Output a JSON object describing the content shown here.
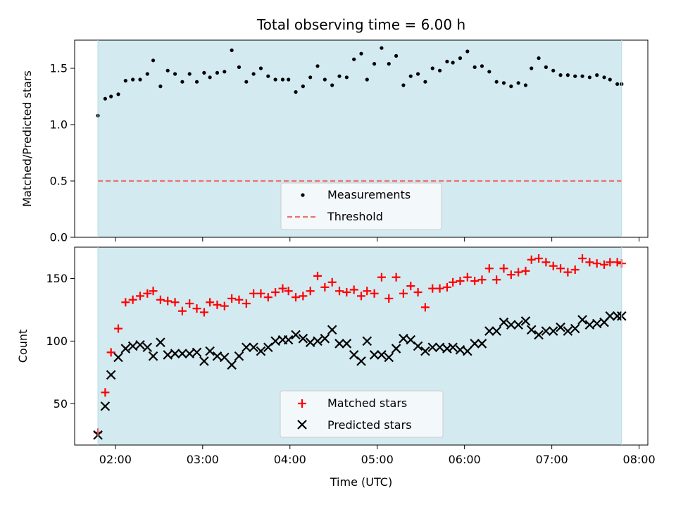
{
  "figure": {
    "title": "Total observing time = 6.00 h"
  },
  "chart_data": [
    {
      "type": "scatter",
      "ylabel": "Matched/Predicted stars",
      "ylim": [
        0,
        1.75
      ],
      "yticks": [
        0.0,
        0.5,
        1.0,
        1.5
      ],
      "ytick_labels": [
        "0.0",
        "0.5",
        "1.0",
        "1.5"
      ],
      "x_range": [
        "01:32",
        "08:06"
      ],
      "shaded_interval": [
        "01:48",
        "07:48"
      ],
      "shade_color": "#d3eaf0",
      "legend_position": "lower-center",
      "series": [
        {
          "name": "Measurements",
          "marker": "dot",
          "color": "#000000",
          "x": [
            "01:48",
            "01:53",
            "01:57",
            "02:02",
            "02:07",
            "02:12",
            "02:17",
            "02:22",
            "02:26",
            "02:31",
            "02:36",
            "02:41",
            "02:46",
            "02:51",
            "02:56",
            "03:01",
            "03:05",
            "03:10",
            "03:15",
            "03:20",
            "03:25",
            "03:30",
            "03:35",
            "03:40",
            "03:45",
            "03:50",
            "03:55",
            "03:59",
            "04:04",
            "04:09",
            "04:14",
            "04:19",
            "04:24",
            "04:29",
            "04:34",
            "04:39",
            "04:44",
            "04:49",
            "04:53",
            "04:58",
            "05:03",
            "05:08",
            "05:13",
            "05:18",
            "05:23",
            "05:28",
            "05:33",
            "05:38",
            "05:43",
            "05:48",
            "05:52",
            "05:57",
            "06:02",
            "06:07",
            "06:12",
            "06:17",
            "06:22",
            "06:27",
            "06:32",
            "06:37",
            "06:42",
            "06:46",
            "06:51",
            "06:56",
            "07:01",
            "07:06",
            "07:11",
            "07:16",
            "07:21",
            "07:26",
            "07:31",
            "07:36",
            "07:40",
            "07:45",
            "07:48"
          ],
          "y": [
            1.08,
            1.23,
            1.25,
            1.27,
            1.39,
            1.4,
            1.4,
            1.45,
            1.57,
            1.34,
            1.48,
            1.45,
            1.38,
            1.45,
            1.38,
            1.46,
            1.42,
            1.46,
            1.47,
            1.66,
            1.51,
            1.38,
            1.45,
            1.5,
            1.43,
            1.4,
            1.4,
            1.4,
            1.29,
            1.34,
            1.42,
            1.52,
            1.4,
            1.35,
            1.43,
            1.42,
            1.58,
            1.63,
            1.4,
            1.54,
            1.68,
            1.54,
            1.61,
            1.35,
            1.43,
            1.45,
            1.38,
            1.5,
            1.48,
            1.56,
            1.55,
            1.59,
            1.65,
            1.51,
            1.52,
            1.47,
            1.38,
            1.37,
            1.34,
            1.37,
            1.35,
            1.5,
            1.59,
            1.51,
            1.48,
            1.44,
            1.44,
            1.43,
            1.43,
            1.42,
            1.44,
            1.42,
            1.4,
            1.36,
            1.36
          ]
        },
        {
          "name": "Threshold",
          "marker": "dashed-line",
          "color": "#f07070",
          "x": [
            "01:48",
            "07:48"
          ],
          "y": [
            0.5,
            0.5
          ]
        }
      ]
    },
    {
      "type": "scatter",
      "xlabel": "Time (UTC)",
      "ylabel": "Count",
      "ylim": [
        17,
        175
      ],
      "yticks": [
        50,
        100,
        150
      ],
      "ytick_labels": [
        "50",
        "100",
        "150"
      ],
      "x_range": [
        "01:32",
        "08:06"
      ],
      "xticks": [
        "02:00",
        "03:00",
        "04:00",
        "05:00",
        "06:00",
        "07:00",
        "08:00"
      ],
      "shaded_interval": [
        "01:48",
        "07:48"
      ],
      "shade_color": "#d3eaf0",
      "legend_position": "lower-center",
      "series": [
        {
          "name": "Matched stars",
          "marker": "plus",
          "color": "#ff0000",
          "x": [
            "01:48",
            "01:53",
            "01:57",
            "02:02",
            "02:07",
            "02:12",
            "02:17",
            "02:22",
            "02:26",
            "02:31",
            "02:36",
            "02:41",
            "02:46",
            "02:51",
            "02:56",
            "03:01",
            "03:05",
            "03:10",
            "03:15",
            "03:20",
            "03:25",
            "03:30",
            "03:35",
            "03:40",
            "03:45",
            "03:50",
            "03:55",
            "03:59",
            "04:04",
            "04:09",
            "04:14",
            "04:19",
            "04:24",
            "04:29",
            "04:34",
            "04:39",
            "04:44",
            "04:49",
            "04:53",
            "04:58",
            "05:03",
            "05:08",
            "05:13",
            "05:18",
            "05:23",
            "05:28",
            "05:33",
            "05:38",
            "05:43",
            "05:48",
            "05:52",
            "05:57",
            "06:02",
            "06:07",
            "06:12",
            "06:17",
            "06:22",
            "06:27",
            "06:32",
            "06:37",
            "06:42",
            "06:46",
            "06:51",
            "06:56",
            "07:01",
            "07:06",
            "07:11",
            "07:16",
            "07:21",
            "07:26",
            "07:31",
            "07:36",
            "07:40",
            "07:45",
            "07:48"
          ],
          "y": [
            27,
            59,
            91,
            110,
            131,
            133,
            136,
            138,
            140,
            133,
            132,
            131,
            124,
            130,
            126,
            123,
            131,
            129,
            128,
            134,
            133,
            130,
            138,
            138,
            135,
            139,
            142,
            140,
            135,
            136,
            140,
            152,
            143,
            147,
            140,
            139,
            141,
            136,
            140,
            138,
            151,
            134,
            151,
            138,
            144,
            139,
            127,
            142,
            142,
            143,
            147,
            148,
            151,
            148,
            149,
            158,
            149,
            158,
            153,
            155,
            156,
            165,
            166,
            163,
            160,
            158,
            155,
            157,
            166,
            163,
            162,
            161,
            163,
            163,
            162
          ]
        },
        {
          "name": "Predicted stars",
          "marker": "x",
          "color": "#000000",
          "x": [
            "01:48",
            "01:53",
            "01:57",
            "02:02",
            "02:07",
            "02:12",
            "02:17",
            "02:22",
            "02:26",
            "02:31",
            "02:36",
            "02:41",
            "02:46",
            "02:51",
            "02:56",
            "03:01",
            "03:05",
            "03:10",
            "03:15",
            "03:20",
            "03:25",
            "03:30",
            "03:35",
            "03:40",
            "03:45",
            "03:50",
            "03:55",
            "03:59",
            "04:04",
            "04:09",
            "04:14",
            "04:19",
            "04:24",
            "04:29",
            "04:34",
            "04:39",
            "04:44",
            "04:49",
            "04:53",
            "04:58",
            "05:03",
            "05:08",
            "05:13",
            "05:18",
            "05:23",
            "05:28",
            "05:33",
            "05:38",
            "05:43",
            "05:48",
            "05:52",
            "05:57",
            "06:02",
            "06:07",
            "06:12",
            "06:17",
            "06:22",
            "06:27",
            "06:32",
            "06:37",
            "06:42",
            "06:46",
            "06:51",
            "06:56",
            "07:01",
            "07:06",
            "07:11",
            "07:16",
            "07:21",
            "07:26",
            "07:31",
            "07:36",
            "07:40",
            "07:45",
            "07:48"
          ],
          "y": [
            25,
            48,
            73,
            87,
            94,
            96,
            97,
            95,
            88,
            99,
            89,
            90,
            90,
            90,
            91,
            84,
            92,
            88,
            87,
            81,
            88,
            95,
            95,
            92,
            95,
            100,
            101,
            101,
            105,
            102,
            99,
            100,
            102,
            109,
            98,
            98,
            89,
            84,
            100,
            89,
            89,
            87,
            94,
            102,
            101,
            96,
            92,
            95,
            95,
            94,
            95,
            93,
            92,
            98,
            98,
            108,
            108,
            115,
            113,
            113,
            116,
            109,
            105,
            108,
            108,
            111,
            108,
            110,
            117,
            113,
            114,
            115,
            120,
            120,
            120
          ]
        }
      ]
    }
  ]
}
